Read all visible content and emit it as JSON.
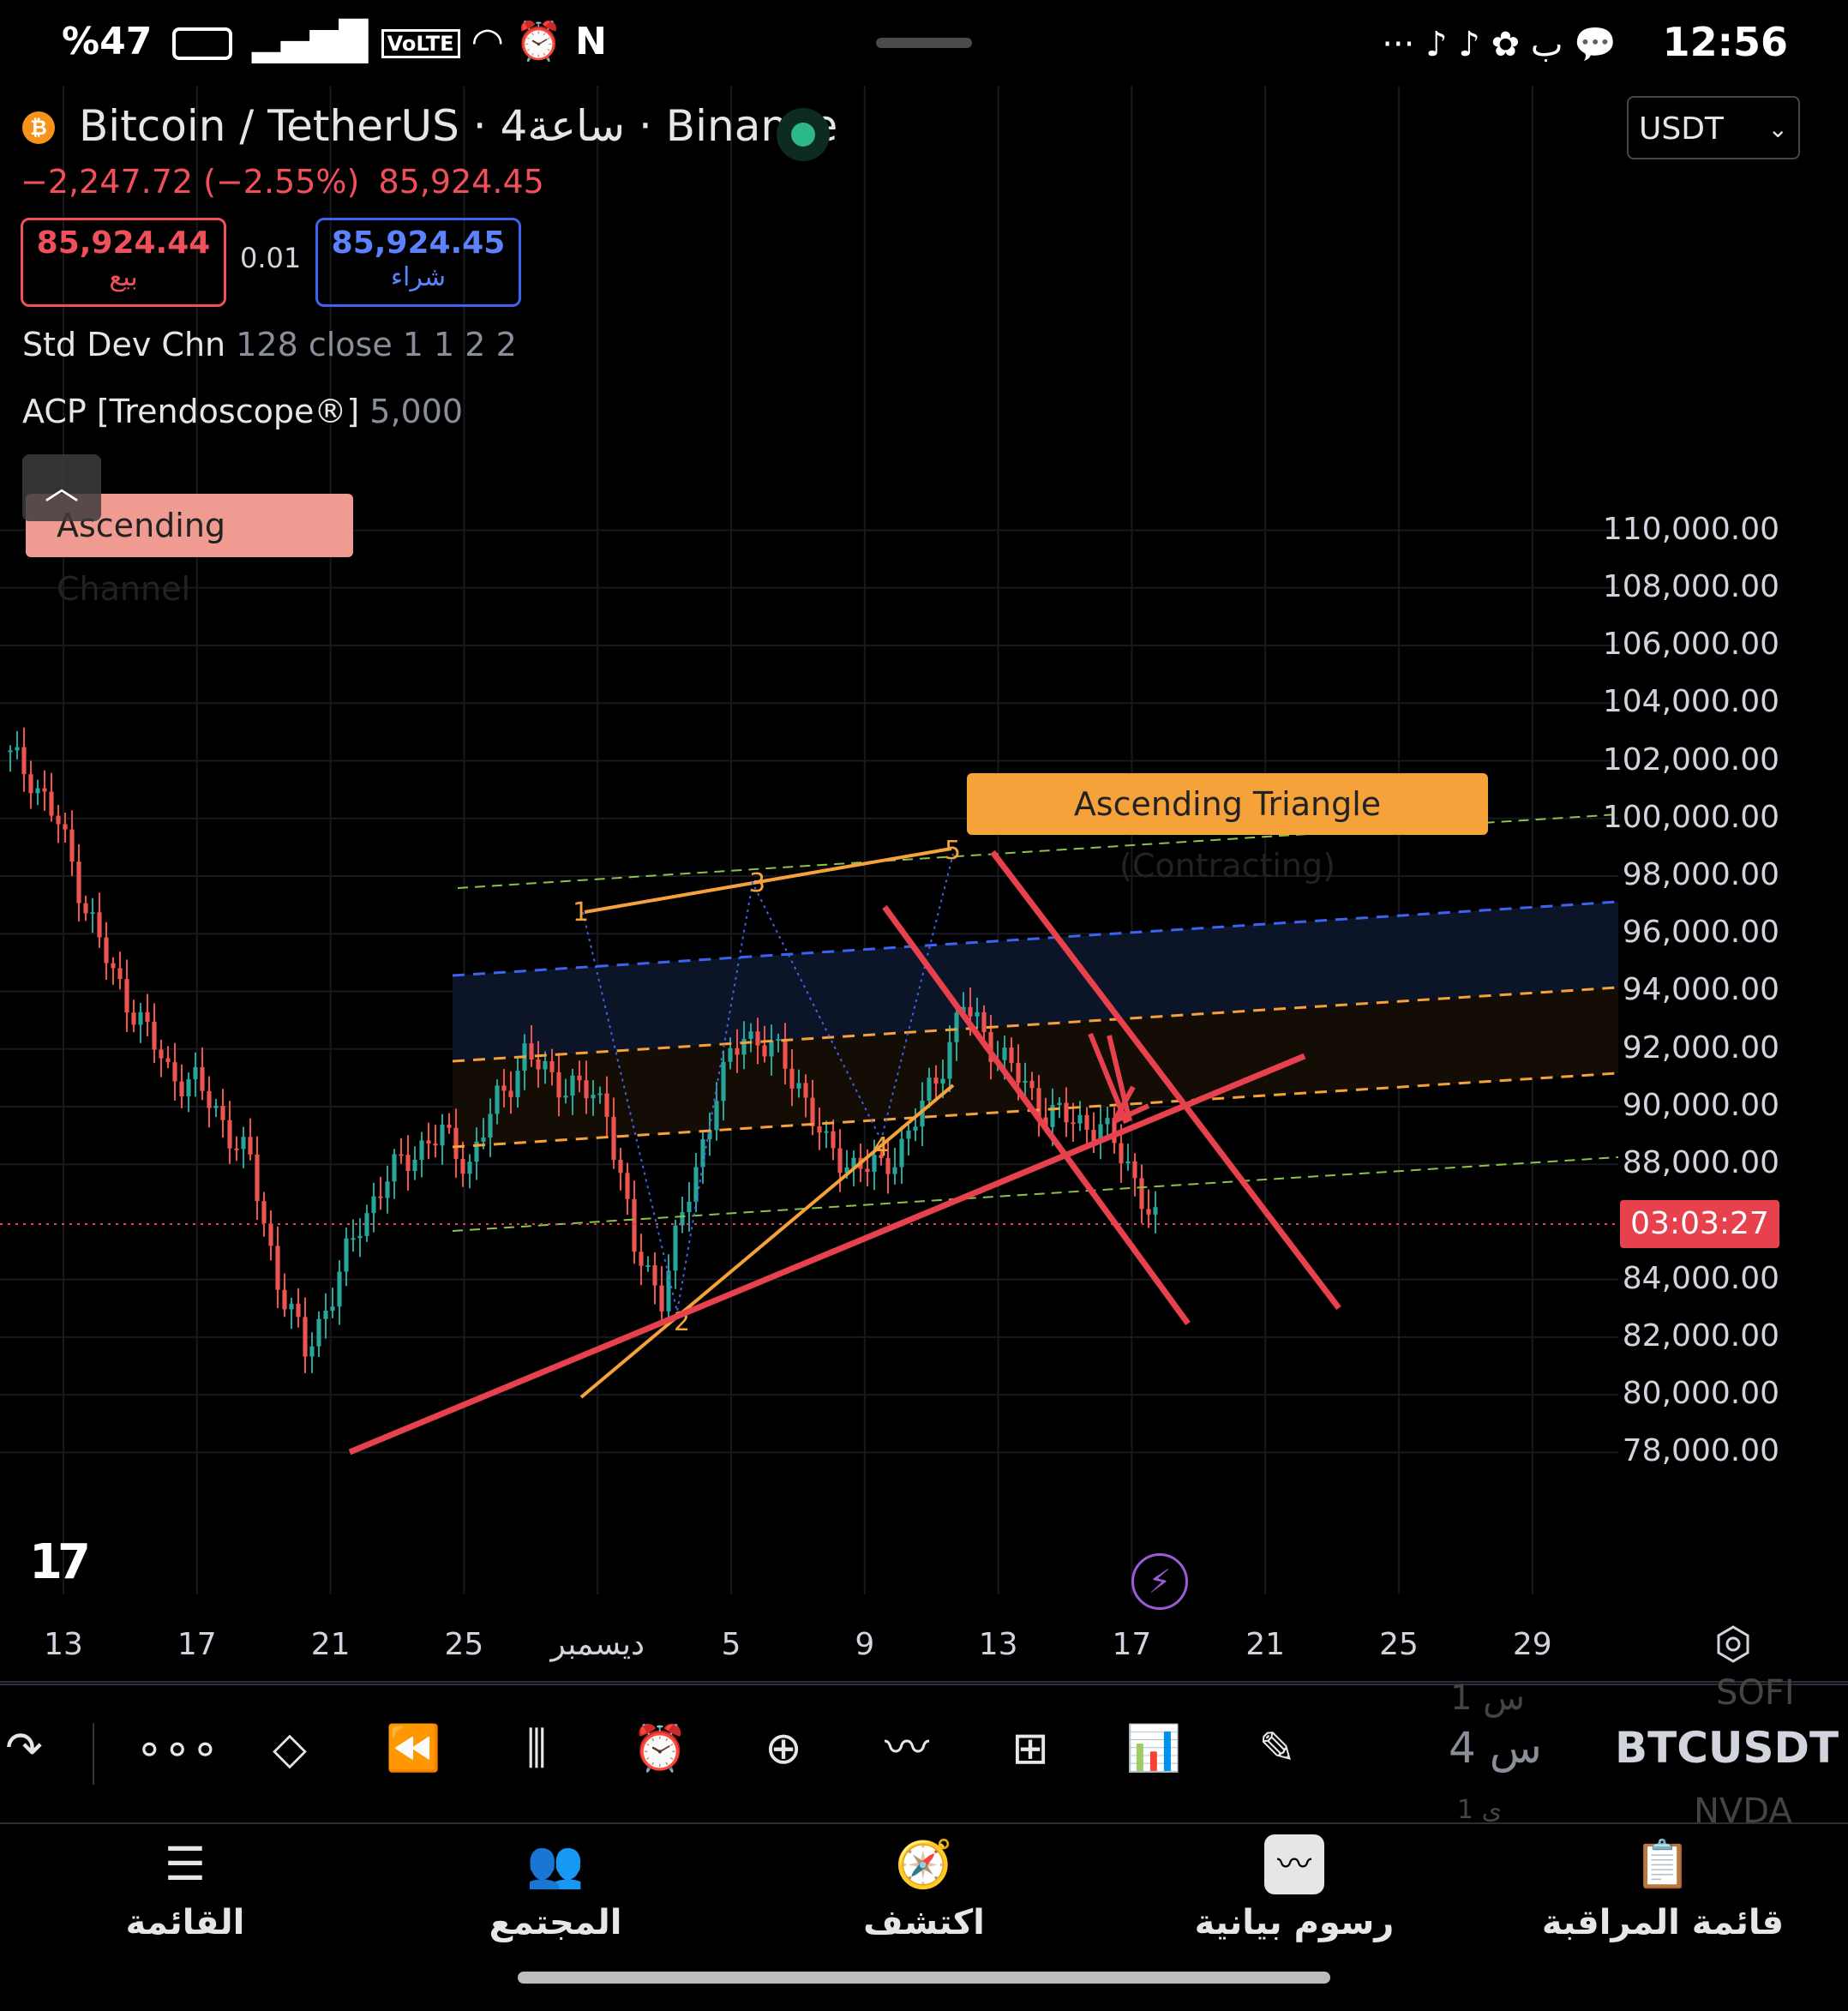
{
  "status_bar": {
    "battery_label": "%47",
    "network_label": "VoLTE",
    "time": "12:56",
    "more": "···",
    "letter": "ب"
  },
  "header": {
    "symbol_title": "Bitcoin / TetherUS · 4ساعة · Binance",
    "change": "−2,247.72 (−2.55%)",
    "last_price": "85,924.45",
    "sell_price": "85,924.44",
    "sell_label": "بيع",
    "spread": "0.01",
    "buy_price": "85,924.45",
    "buy_label": "شراء",
    "currency": "USDT"
  },
  "indicators": [
    {
      "name": "Std Dev Chn",
      "params": "128 close 1 1 2 2"
    },
    {
      "name": "ACP [Trendoscope®]",
      "params": "5,000"
    }
  ],
  "chart_labels": {
    "channel": "Ascending Channel",
    "triangle": "Ascending Triangle (Contracting)",
    "countdown": "03:03:27",
    "wave_points": [
      "1",
      "2",
      "3",
      "4",
      "5"
    ]
  },
  "chart_data": {
    "type": "candlestick",
    "symbol": "BTCUSDT",
    "interval": "4ساعة",
    "exchange": "Binance",
    "y_ticks": [
      "110,000.00",
      "108,000.00",
      "106,000.00",
      "104,000.00",
      "102,000.00",
      "100,000.00",
      "98,000.00",
      "96,000.00",
      "94,000.00",
      "92,000.00",
      "90,000.00",
      "88,000.00",
      "84,000.00",
      "82,000.00",
      "80,000.00",
      "78,000.00"
    ],
    "y_tick_values": [
      110000,
      108000,
      106000,
      104000,
      102000,
      100000,
      98000,
      96000,
      94000,
      92000,
      90000,
      88000,
      84000,
      82000,
      80000,
      78000
    ],
    "x_ticks": [
      "13",
      "17",
      "21",
      "25",
      "ديسمبر",
      "5",
      "9",
      "13",
      "17",
      "21",
      "25",
      "29"
    ],
    "current_price": 85924.45,
    "approx_closes": [
      101500,
      99800,
      97000,
      94500,
      93000,
      91200,
      90800,
      89500,
      88000,
      84000,
      81500,
      83500,
      86000,
      87500,
      88500,
      89000,
      88000,
      90200,
      91800,
      91000,
      90600,
      90000,
      85000,
      83500,
      87000,
      90500,
      92600,
      92000,
      90800,
      88500,
      88000,
      87800,
      89000,
      91000,
      93500,
      92200,
      91000,
      89800,
      89500,
      89300,
      88000,
      85900
    ],
    "colors": {
      "up": "#26a69a",
      "down": "#ef5350",
      "accent": "#e8414e"
    }
  },
  "toolbar": {
    "symbol": "BTCUSDT",
    "interval": "4 س",
    "prev_symbol": "SOFI",
    "prev_interval": "1 س",
    "next_symbol": "NVDA",
    "next_interval": "1 ي",
    "tools": [
      "redo-icon",
      "more-icon",
      "layers-icon",
      "replay-icon",
      "candles-icon",
      "alarm-icon",
      "add-icon",
      "compare-icon",
      "layout-icon",
      "indicators-icon",
      "draw-icon"
    ]
  },
  "bottom_nav": [
    {
      "label": "القائمة",
      "icon": "menu-icon"
    },
    {
      "label": "المجتمع",
      "icon": "community-icon"
    },
    {
      "label": "اكتشف",
      "icon": "explore-icon"
    },
    {
      "label": "رسوم بيانية",
      "icon": "charts-icon"
    },
    {
      "label": "قائمة المراقبة",
      "icon": "watchlist-icon"
    }
  ]
}
